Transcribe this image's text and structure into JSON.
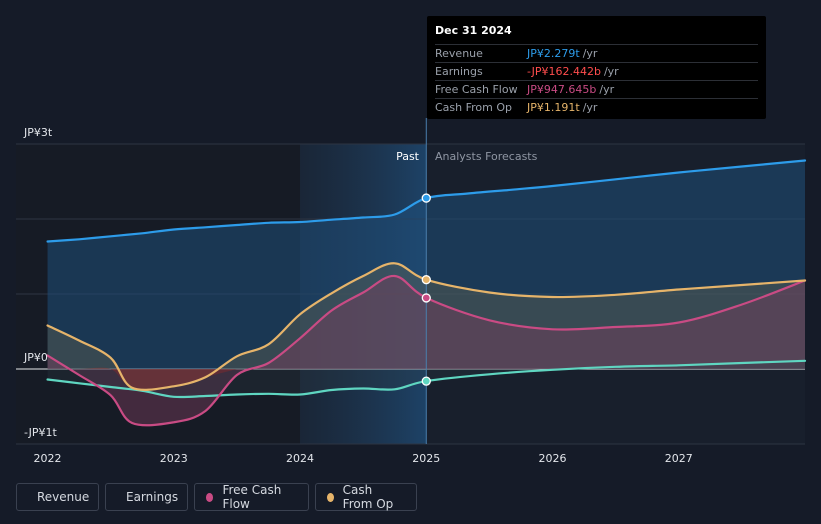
{
  "chart_data": {
    "type": "line",
    "title": "",
    "xlabel": "",
    "ylabel": "",
    "currency": "JP¥",
    "ylim": [
      -1.0,
      3.0
    ],
    "y_tick_labels": [
      {
        "value": 3,
        "label": "JP¥3t"
      },
      {
        "value": 0,
        "label": "JP¥0"
      },
      {
        "value": -1,
        "label": "-JP¥1t"
      }
    ],
    "x_ticks": [
      {
        "value": 2022.0,
        "label": "2022"
      },
      {
        "value": 2023.0,
        "label": "2023"
      },
      {
        "value": 2024.0,
        "label": "2024"
      },
      {
        "value": 2025.0,
        "label": "2025"
      },
      {
        "value": 2026.0,
        "label": "2026"
      },
      {
        "value": 2027.0,
        "label": "2027"
      }
    ],
    "xlim": [
      2021.75,
      2028.0
    ],
    "divider_x": 2025.0,
    "highlight_start": 2024.0,
    "past_label": "Past",
    "forecast_label": "Analysts Forecasts",
    "series": [
      {
        "name": "Revenue",
        "color": "#2d9cea",
        "points": [
          [
            2022.0,
            1.7
          ],
          [
            2022.25,
            1.73
          ],
          [
            2022.5,
            1.77
          ],
          [
            2022.75,
            1.81
          ],
          [
            2023.0,
            1.86
          ],
          [
            2023.25,
            1.89
          ],
          [
            2023.5,
            1.92
          ],
          [
            2023.75,
            1.95
          ],
          [
            2024.0,
            1.96
          ],
          [
            2024.25,
            1.99
          ],
          [
            2024.5,
            2.02
          ],
          [
            2024.75,
            2.06
          ],
          [
            2025.0,
            2.279
          ],
          [
            2025.33,
            2.34
          ],
          [
            2025.67,
            2.39
          ],
          [
            2026.0,
            2.44
          ],
          [
            2026.5,
            2.53
          ],
          [
            2027.0,
            2.62
          ],
          [
            2027.5,
            2.7
          ],
          [
            2028.0,
            2.78
          ]
        ]
      },
      {
        "name": "Earnings",
        "color": "#5fd6c1",
        "points": [
          [
            2022.0,
            -0.14
          ],
          [
            2022.25,
            -0.19
          ],
          [
            2022.5,
            -0.24
          ],
          [
            2022.75,
            -0.29
          ],
          [
            2023.0,
            -0.37
          ],
          [
            2023.25,
            -0.36
          ],
          [
            2023.5,
            -0.34
          ],
          [
            2023.75,
            -0.33
          ],
          [
            2024.0,
            -0.34
          ],
          [
            2024.25,
            -0.28
          ],
          [
            2024.5,
            -0.26
          ],
          [
            2024.75,
            -0.27
          ],
          [
            2025.0,
            -0.162
          ],
          [
            2025.5,
            -0.07
          ],
          [
            2026.0,
            -0.01
          ],
          [
            2026.5,
            0.03
          ],
          [
            2027.0,
            0.05
          ],
          [
            2027.5,
            0.08
          ],
          [
            2028.0,
            0.11
          ]
        ]
      },
      {
        "name": "Free Cash Flow",
        "color": "#c94b84",
        "points": [
          [
            2022.0,
            0.18
          ],
          [
            2022.25,
            -0.08
          ],
          [
            2022.5,
            -0.35
          ],
          [
            2022.67,
            -0.72
          ],
          [
            2023.0,
            -0.71
          ],
          [
            2023.25,
            -0.56
          ],
          [
            2023.5,
            -0.08
          ],
          [
            2023.75,
            0.08
          ],
          [
            2024.0,
            0.41
          ],
          [
            2024.25,
            0.78
          ],
          [
            2024.5,
            1.02
          ],
          [
            2024.75,
            1.24
          ],
          [
            2025.0,
            0.947645
          ],
          [
            2025.5,
            0.65
          ],
          [
            2026.0,
            0.53
          ],
          [
            2026.5,
            0.56
          ],
          [
            2027.0,
            0.62
          ],
          [
            2027.5,
            0.86
          ],
          [
            2028.0,
            1.18
          ]
        ]
      },
      {
        "name": "Cash From Op",
        "color": "#e6b46a",
        "points": [
          [
            2022.0,
            0.58
          ],
          [
            2022.25,
            0.38
          ],
          [
            2022.5,
            0.15
          ],
          [
            2022.67,
            -0.25
          ],
          [
            2023.0,
            -0.23
          ],
          [
            2023.25,
            -0.11
          ],
          [
            2023.5,
            0.17
          ],
          [
            2023.75,
            0.33
          ],
          [
            2024.0,
            0.73
          ],
          [
            2024.25,
            1.01
          ],
          [
            2024.5,
            1.24
          ],
          [
            2024.75,
            1.41
          ],
          [
            2025.0,
            1.191
          ],
          [
            2025.5,
            1.02
          ],
          [
            2026.0,
            0.96
          ],
          [
            2026.5,
            0.99
          ],
          [
            2027.0,
            1.06
          ],
          [
            2027.5,
            1.12
          ],
          [
            2028.0,
            1.18
          ]
        ]
      }
    ]
  },
  "tooltip": {
    "date": "Dec 31 2024",
    "unit": "/yr",
    "rows": [
      {
        "label": "Revenue",
        "value": "JP¥2.279t",
        "color": "#2d9cea"
      },
      {
        "label": "Earnings",
        "value": "-JP¥162.442b",
        "color": "#ff4d4d"
      },
      {
        "label": "Free Cash Flow",
        "value": "JP¥947.645b",
        "color": "#c94b84"
      },
      {
        "label": "Cash From Op",
        "value": "JP¥1.191t",
        "color": "#e6b46a"
      }
    ]
  },
  "legend": [
    {
      "label": "Revenue",
      "color": "#2d9cea"
    },
    {
      "label": "Earnings",
      "color": "#5fd6c1"
    },
    {
      "label": "Free Cash Flow",
      "color": "#c94b84"
    },
    {
      "label": "Cash From Op",
      "color": "#e6b46a"
    }
  ]
}
